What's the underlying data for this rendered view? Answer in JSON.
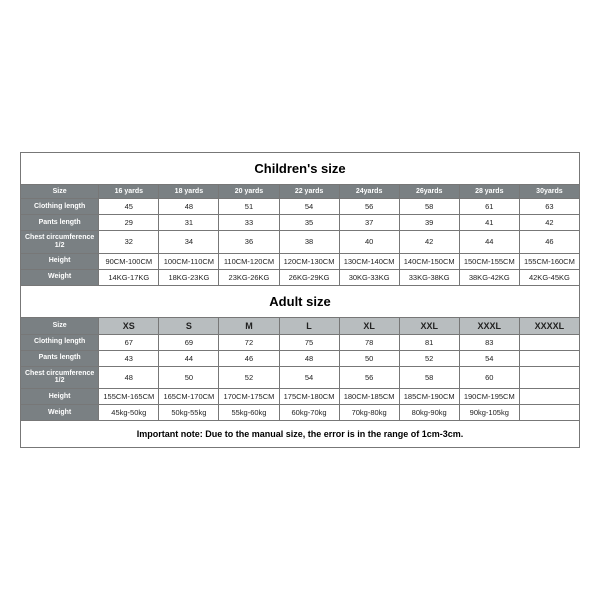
{
  "children": {
    "title": "Children's size",
    "headers": [
      "Size",
      "16 yards",
      "18 yards",
      "20 yards",
      "22 yards",
      "24yards",
      "26yards",
      "28 yards",
      "30yards"
    ],
    "rows": [
      {
        "label": "Clothing length",
        "values": [
          "45",
          "48",
          "51",
          "54",
          "56",
          "58",
          "61",
          "63"
        ]
      },
      {
        "label": "Pants length",
        "values": [
          "29",
          "31",
          "33",
          "35",
          "37",
          "39",
          "41",
          "42"
        ]
      },
      {
        "label": "Chest circumference 1/2",
        "values": [
          "32",
          "34",
          "36",
          "38",
          "40",
          "42",
          "44",
          "46"
        ]
      },
      {
        "label": "Height",
        "values": [
          "90CM-100CM",
          "100CM-110CM",
          "110CM-120CM",
          "120CM-130CM",
          "130CM-140CM",
          "140CM-150CM",
          "150CM-155CM",
          "155CM-160CM"
        ]
      },
      {
        "label": "Weight",
        "values": [
          "14KG-17KG",
          "18KG-23KG",
          "23KG-26KG",
          "26KG-29KG",
          "30KG-33KG",
          "33KG-38KG",
          "38KG-42KG",
          "42KG-45KG"
        ]
      }
    ]
  },
  "adult": {
    "title": "Adult size",
    "headers": [
      "Size",
      "XS",
      "S",
      "M",
      "L",
      "XL",
      "XXL",
      "XXXL",
      "XXXXL"
    ],
    "rows": [
      {
        "label": "Clothing length",
        "values": [
          "67",
          "69",
          "72",
          "75",
          "78",
          "81",
          "83",
          ""
        ]
      },
      {
        "label": "Pants length",
        "values": [
          "43",
          "44",
          "46",
          "48",
          "50",
          "52",
          "54",
          ""
        ]
      },
      {
        "label": "Chest circumference 1/2",
        "values": [
          "48",
          "50",
          "52",
          "54",
          "56",
          "58",
          "60",
          ""
        ]
      },
      {
        "label": "Height",
        "values": [
          "155CM-165CM",
          "165CM-170CM",
          "170CM-175CM",
          "175CM-180CM",
          "180CM-185CM",
          "185CM-190CM",
          "190CM-195CM",
          ""
        ]
      },
      {
        "label": "Weight",
        "values": [
          "45kg-50kg",
          "50kg-55kg",
          "55kg-60kg",
          "60kg-70kg",
          "70kg-80kg",
          "80kg-90kg",
          "90kg-105kg",
          ""
        ]
      }
    ]
  },
  "note": "Important note: Due to the manual size, the error is in the range of 1cm-3cm."
}
